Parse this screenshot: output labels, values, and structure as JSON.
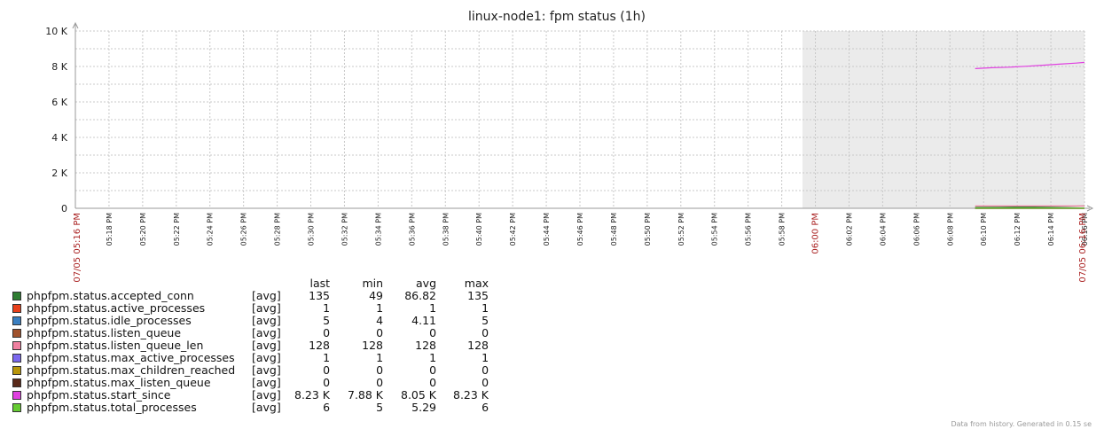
{
  "chart_data": {
    "type": "line",
    "title": "linux-node1: fpm status (1h)",
    "ylim": [
      0,
      10000
    ],
    "y_ticks": [
      "0",
      "2 K",
      "4 K",
      "6 K",
      "8 K",
      "10 K"
    ],
    "y_tick_values": [
      0,
      2000,
      4000,
      6000,
      8000,
      10000
    ],
    "x_start_label": "07/05 05:16 PM",
    "x_end_label": "07/05 06:16 PM",
    "x_major_label": "06:00 PM",
    "x_ticks": [
      "05:18 PM",
      "05:20 PM",
      "05:22 PM",
      "05:24 PM",
      "05:26 PM",
      "05:28 PM",
      "05:30 PM",
      "05:32 PM",
      "05:34 PM",
      "05:36 PM",
      "05:38 PM",
      "05:40 PM",
      "05:42 PM",
      "05:44 PM",
      "05:46 PM",
      "05:48 PM",
      "05:50 PM",
      "05:52 PM",
      "05:54 PM",
      "05:56 PM",
      "05:58 PM",
      "06:02 PM",
      "06:04 PM",
      "06:06 PM",
      "06:08 PM",
      "06:10 PM",
      "06:12 PM",
      "06:14 PM",
      "06:16 PM"
    ],
    "x_tick_minutes": [
      2,
      4,
      6,
      8,
      10,
      12,
      14,
      16,
      18,
      20,
      22,
      24,
      26,
      28,
      30,
      32,
      34,
      36,
      38,
      40,
      42,
      46,
      48,
      50,
      52,
      54,
      56,
      58,
      60
    ],
    "x_range_minutes": [
      0,
      60
    ],
    "shaded_period_start_minute": 44,
    "grid": true,
    "legend_columns": [
      "last",
      "min",
      "avg",
      "max"
    ],
    "series": [
      {
        "name": "phpfpm.status.accepted_conn",
        "func": "[avg]",
        "color": "#2e7d32",
        "last": "135",
        "min": "49",
        "avg": "86.82",
        "max": "135",
        "points": [
          [
            53.5,
            49
          ],
          [
            55,
            62
          ],
          [
            56.5,
            75
          ],
          [
            58,
            95
          ],
          [
            59,
            110
          ],
          [
            60,
            135
          ]
        ]
      },
      {
        "name": "phpfpm.status.active_processes",
        "func": "[avg]",
        "color": "#e8401c",
        "last": "1",
        "min": "1",
        "avg": "1",
        "max": "1",
        "points": [
          [
            53.5,
            1
          ],
          [
            60,
            1
          ]
        ]
      },
      {
        "name": "phpfpm.status.idle_processes",
        "func": "[avg]",
        "color": "#3a7fc1",
        "last": "5",
        "min": "4",
        "avg": "4.11",
        "max": "5",
        "points": [
          [
            53.5,
            4
          ],
          [
            60,
            5
          ]
        ]
      },
      {
        "name": "phpfpm.status.listen_queue",
        "func": "[avg]",
        "color": "#a0522d",
        "last": "0",
        "min": "0",
        "avg": "0",
        "max": "0",
        "points": [
          [
            53.5,
            0
          ],
          [
            60,
            0
          ]
        ]
      },
      {
        "name": "phpfpm.status.listen_queue_len",
        "func": "[avg]",
        "color": "#f080a0",
        "last": "128",
        "min": "128",
        "avg": "128",
        "max": "128",
        "points": [
          [
            53.5,
            128
          ],
          [
            60,
            128
          ]
        ]
      },
      {
        "name": "phpfpm.status.max_active_processes",
        "func": "[avg]",
        "color": "#7b68ee",
        "last": "1",
        "min": "1",
        "avg": "1",
        "max": "1",
        "points": [
          [
            53.5,
            1
          ],
          [
            60,
            1
          ]
        ]
      },
      {
        "name": "phpfpm.status.max_children_reached",
        "func": "[avg]",
        "color": "#b8960c",
        "last": "0",
        "min": "0",
        "avg": "0",
        "max": "0",
        "points": [
          [
            53.5,
            0
          ],
          [
            60,
            0
          ]
        ]
      },
      {
        "name": "phpfpm.status.max_listen_queue",
        "func": "[avg]",
        "color": "#5a2a1a",
        "last": "0",
        "min": "0",
        "avg": "0",
        "max": "0",
        "points": [
          [
            53.5,
            0
          ],
          [
            60,
            0
          ]
        ]
      },
      {
        "name": "phpfpm.status.start_since",
        "func": "[avg]",
        "color": "#e040e0",
        "last": "8.23 K",
        "min": "7.88 K",
        "avg": "8.05 K",
        "max": "8.23 K",
        "points": [
          [
            53.5,
            7880
          ],
          [
            54.5,
            7930
          ],
          [
            55.5,
            7960
          ],
          [
            56.5,
            8010
          ],
          [
            57.5,
            8070
          ],
          [
            58.5,
            8130
          ],
          [
            59.5,
            8190
          ],
          [
            60,
            8230
          ]
        ]
      },
      {
        "name": "phpfpm.status.total_processes",
        "func": "[avg]",
        "color": "#66cc33",
        "last": "6",
        "min": "5",
        "avg": "5.29",
        "max": "6",
        "points": [
          [
            53.5,
            5
          ],
          [
            60,
            6
          ]
        ]
      }
    ]
  },
  "footer": "Data from history. Generated in 0.15 se"
}
